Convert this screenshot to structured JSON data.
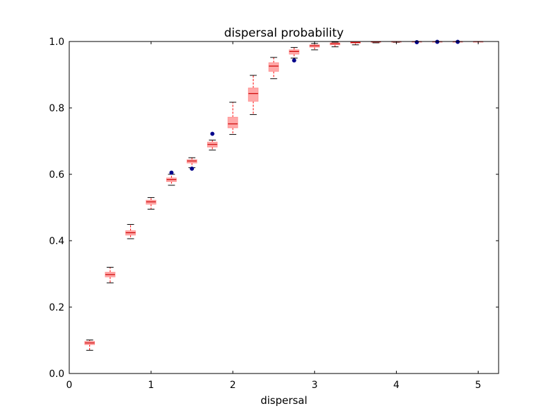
{
  "chart_data": {
    "type": "box",
    "title": "dispersal probability",
    "xlabel": "dispersal",
    "ylabel": "",
    "xlim": [
      0,
      5.25
    ],
    "ylim": [
      0,
      1.0
    ],
    "xticks": [
      0,
      1,
      2,
      3,
      4,
      5
    ],
    "xtick_labels": [
      "0",
      "1",
      "2",
      "3",
      "4",
      "5"
    ],
    "yticks": [
      0.0,
      0.2,
      0.4,
      0.6,
      0.8,
      1.0
    ],
    "ytick_labels": [
      "0.0",
      "0.2",
      "0.4",
      "0.6",
      "0.8",
      "1.0"
    ],
    "grid": false,
    "colors": {
      "box_fill": "#ff9999",
      "median": "#cc0000",
      "whisker": "#ff0000",
      "cap": "#000000",
      "outlier": "#00008b"
    },
    "boxes": [
      {
        "x": 0.25,
        "whislo": 0.07,
        "q1": 0.087,
        "med": 0.092,
        "q3": 0.097,
        "whishi": 0.101,
        "fliers": []
      },
      {
        "x": 0.5,
        "whislo": 0.273,
        "q1": 0.291,
        "med": 0.298,
        "q3": 0.305,
        "whishi": 0.32,
        "fliers": []
      },
      {
        "x": 0.75,
        "whislo": 0.406,
        "q1": 0.417,
        "med": 0.424,
        "q3": 0.43,
        "whishi": 0.449,
        "fliers": []
      },
      {
        "x": 1.0,
        "whislo": 0.495,
        "q1": 0.51,
        "med": 0.517,
        "q3": 0.522,
        "whishi": 0.53,
        "fliers": []
      },
      {
        "x": 1.25,
        "whislo": 0.567,
        "q1": 0.578,
        "med": 0.584,
        "q3": 0.589,
        "whishi": 0.6,
        "fliers": [
          0.605
        ]
      },
      {
        "x": 1.5,
        "whislo": 0.62,
        "q1": 0.634,
        "med": 0.64,
        "q3": 0.644,
        "whishi": 0.65,
        "fliers": [
          0.617
        ]
      },
      {
        "x": 1.75,
        "whislo": 0.673,
        "q1": 0.682,
        "med": 0.69,
        "q3": 0.697,
        "whishi": 0.703,
        "fliers": [
          0.722
        ]
      },
      {
        "x": 2.0,
        "whislo": 0.72,
        "q1": 0.74,
        "med": 0.752,
        "q3": 0.772,
        "whishi": 0.817,
        "fliers": []
      },
      {
        "x": 2.25,
        "whislo": 0.78,
        "q1": 0.82,
        "med": 0.843,
        "q3": 0.86,
        "whishi": 0.898,
        "fliers": []
      },
      {
        "x": 2.5,
        "whislo": 0.888,
        "q1": 0.91,
        "med": 0.926,
        "q3": 0.936,
        "whishi": 0.952,
        "fliers": []
      },
      {
        "x": 2.75,
        "whislo": 0.95,
        "q1": 0.962,
        "med": 0.97,
        "q3": 0.975,
        "whishi": 0.982,
        "fliers": [
          0.943
        ]
      },
      {
        "x": 3.0,
        "whislo": 0.975,
        "q1": 0.983,
        "med": 0.987,
        "q3": 0.99,
        "whishi": 0.994,
        "fliers": []
      },
      {
        "x": 3.25,
        "whislo": 0.984,
        "q1": 0.99,
        "med": 0.993,
        "q3": 0.996,
        "whishi": 0.998,
        "fliers": []
      },
      {
        "x": 3.5,
        "whislo": 0.99,
        "q1": 0.995,
        "med": 0.997,
        "q3": 0.999,
        "whishi": 1.0,
        "fliers": []
      },
      {
        "x": 3.75,
        "whislo": 0.996,
        "q1": 0.998,
        "med": 0.999,
        "q3": 1.0,
        "whishi": 1.0,
        "fliers": []
      },
      {
        "x": 4.0,
        "whislo": 0.997,
        "q1": 0.999,
        "med": 1.0,
        "q3": 1.0,
        "whishi": 1.0,
        "fliers": []
      },
      {
        "x": 4.25,
        "whislo": 0.999,
        "q1": 1.0,
        "med": 1.0,
        "q3": 1.0,
        "whishi": 1.0,
        "fliers": [
          0.998
        ]
      },
      {
        "x": 4.5,
        "whislo": 1.0,
        "q1": 1.0,
        "med": 1.0,
        "q3": 1.0,
        "whishi": 1.0,
        "fliers": [
          0.999
        ]
      },
      {
        "x": 4.75,
        "whislo": 1.0,
        "q1": 1.0,
        "med": 1.0,
        "q3": 1.0,
        "whishi": 1.0,
        "fliers": [
          0.999
        ]
      },
      {
        "x": 5.0,
        "whislo": 1.0,
        "q1": 1.0,
        "med": 1.0,
        "q3": 1.0,
        "whishi": 1.0,
        "fliers": []
      }
    ]
  }
}
